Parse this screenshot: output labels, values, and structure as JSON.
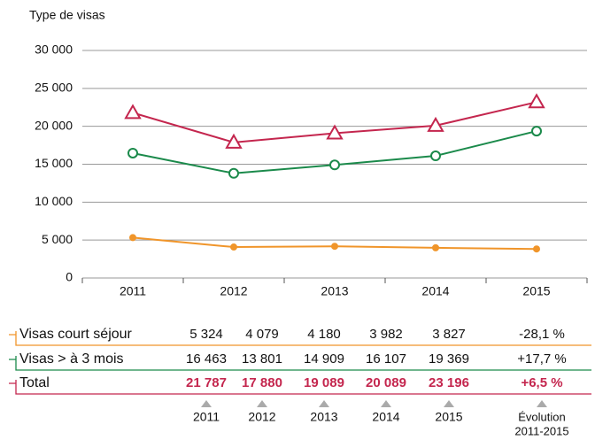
{
  "chart_data": {
    "type": "line",
    "y_axis_label": "Type de visas",
    "categories": [
      "2011",
      "2012",
      "2013",
      "2014",
      "2015"
    ],
    "ylim": [
      0,
      30000
    ],
    "yticks": [
      {
        "value": 0,
        "label": "0"
      },
      {
        "value": 5000,
        "label": "5 000"
      },
      {
        "value": 10000,
        "label": "10 000"
      },
      {
        "value": 15000,
        "label": "15 000"
      },
      {
        "value": 20000,
        "label": "20 000"
      },
      {
        "value": 25000,
        "label": "25 000"
      },
      {
        "value": 30000,
        "label": "30 000"
      }
    ],
    "grid": true,
    "series": [
      {
        "name": "Visas court séjour",
        "color": "#f0952a",
        "marker": "filled-circle",
        "values": [
          5324,
          4079,
          4180,
          3982,
          3827
        ],
        "value_labels": [
          "5 324",
          "4 079",
          "4 180",
          "3 982",
          "3 827"
        ],
        "change": "-28,1 %"
      },
      {
        "name": "Visas > à 3 mois",
        "color": "#1b8a4b",
        "marker": "open-circle",
        "values": [
          16463,
          13801,
          14909,
          16107,
          19369
        ],
        "value_labels": [
          "16 463",
          "13 801",
          "14 909",
          "16 107",
          "19 369"
        ],
        "change": "+17,7 %"
      },
      {
        "name": "Total",
        "color": "#c4264e",
        "marker": "open-triangle",
        "bold": true,
        "values": [
          21787,
          17880,
          19089,
          20089,
          23196
        ],
        "value_labels": [
          "21 787",
          "17 880",
          "19 089",
          "20 089",
          "23 196"
        ],
        "change": "+6,5 %"
      }
    ],
    "change_header": [
      "Évolution",
      "2011-2015"
    ]
  }
}
